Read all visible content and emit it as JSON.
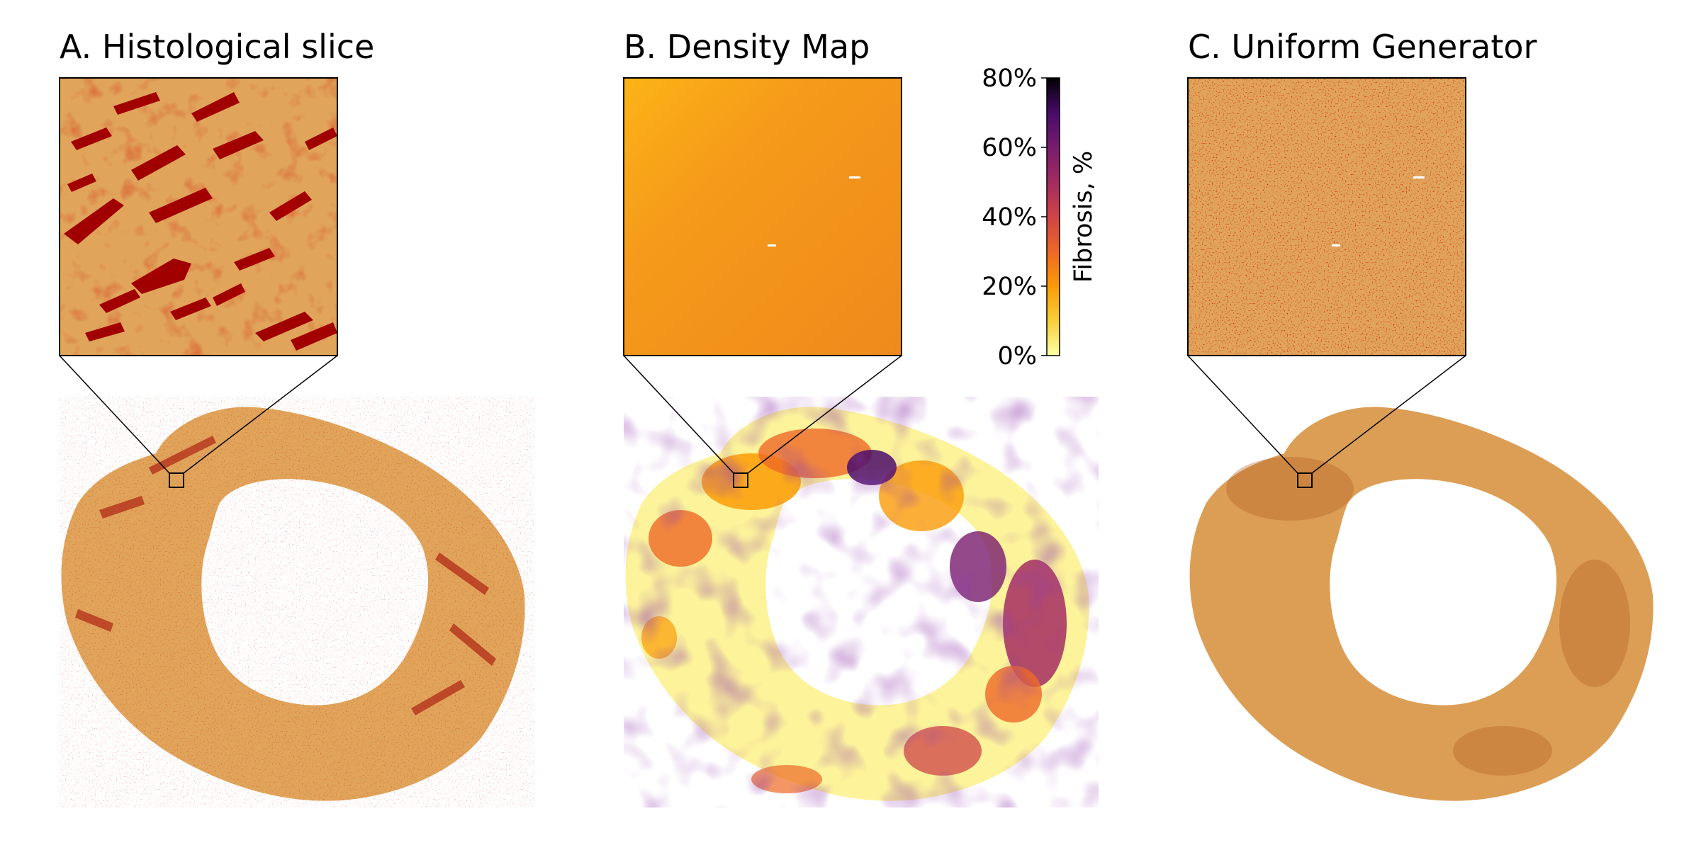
{
  "panels": [
    {
      "title": "A. Histological slice",
      "tissue": "#e0a45a",
      "fibrosis": "#a00000"
    },
    {
      "title": "B. Density Map",
      "tissue": "#f5a025",
      "fibrosis": "#3d1260"
    },
    {
      "title": "C. Uniform Generator",
      "tissue": "#e0a45a",
      "fibrosis": "#a00000"
    }
  ],
  "colorbar": {
    "label": "Fibrosis, %",
    "ticks": [
      "0%",
      "20%",
      "40%",
      "60%",
      "80%"
    ],
    "colors": [
      "#fcffa4",
      "#f7d13d",
      "#fb9b06",
      "#ed6925",
      "#cf4446",
      "#a52c60",
      "#781c6d",
      "#4a0c6b",
      "#1b0c41",
      "#000004"
    ]
  }
}
